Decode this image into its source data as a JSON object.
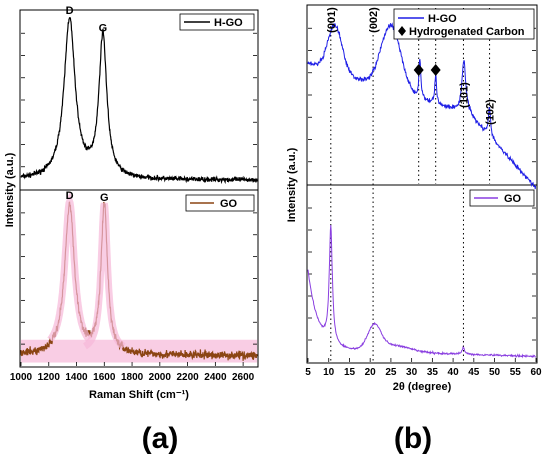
{
  "chart_data": [
    {
      "panel": "(a)",
      "type": "line",
      "xlabel": "Raman Shift (cm⁻¹)",
      "ylabel": "Intensity (a.u.)",
      "xlim": [
        1000,
        2700
      ],
      "xticks": [
        1000,
        1200,
        1400,
        1600,
        1800,
        2000,
        2200,
        2400,
        2600
      ],
      "grid": false,
      "subplots": [
        {
          "name": "top",
          "legend": "H-GO",
          "legend_position": "top-right",
          "color": "#000000",
          "peak_labels": [
            {
              "text": "D",
              "x": 1350
            },
            {
              "text": "G",
              "x": 1590
            }
          ],
          "peaks": [
            {
              "x": 1350,
              "height": 0.9,
              "width": 48
            },
            {
              "x": 1590,
              "height": 0.8,
              "width": 34
            }
          ],
          "baseline": 0.05,
          "noise": 0.02
        },
        {
          "name": "bottom",
          "legend": "GO",
          "legend_position": "top-right",
          "color": "#8B4513",
          "band_color": "#f7b8d8",
          "peak_labels": [
            {
              "text": "D",
              "x": 1350
            },
            {
              "text": "G",
              "x": 1600
            }
          ],
          "peaks": [
            {
              "x": 1350,
              "height": 0.86,
              "width": 42
            },
            {
              "x": 1600,
              "height": 0.85,
              "width": 28
            }
          ],
          "baseline": 0.06,
          "noise": 0.035
        }
      ]
    },
    {
      "panel": "(b)",
      "type": "line",
      "xlabel": "2θ (degree)",
      "ylabel": "Intensity (a.u.)",
      "xlim": [
        5,
        60
      ],
      "xticks": [
        5,
        10,
        15,
        20,
        25,
        30,
        35,
        40,
        45,
        50,
        55,
        60
      ],
      "grid": false,
      "vlines": [
        10.5,
        20.7,
        31.7,
        35.8,
        42.5,
        48.8
      ],
      "subplots": [
        {
          "name": "top",
          "legend": [
            "H-GO",
            "Hydrogenated Carbon"
          ],
          "legend_position": "top-right",
          "color": "#1f1fe6",
          "peak_labels": [
            {
              "text": "(001)",
              "x": 10.5
            },
            {
              "text": "(002)",
              "x": 20.7
            },
            {
              "text": "(101)",
              "x": 42.5
            },
            {
              "text": "(102)",
              "x": 48.8
            }
          ],
          "markers": [
            {
              "symbol": "diamond",
              "x": 31.7
            },
            {
              "symbol": "diamond",
              "x": 35.8
            }
          ]
        },
        {
          "name": "bottom",
          "legend": "GO",
          "legend_position": "top-right",
          "color": "#8a3fe0"
        }
      ]
    }
  ],
  "labels": {
    "a": "(a)",
    "b": "(b)"
  },
  "icons": {
    "diamond": "diamond-icon"
  }
}
